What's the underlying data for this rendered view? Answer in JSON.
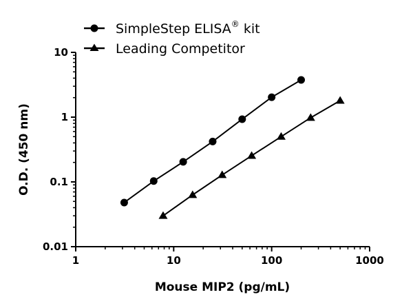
{
  "chart_data": {
    "type": "line",
    "title": "",
    "xlabel": "Mouse MIP2 (pg/mL)",
    "ylabel": "O.D. (450 nm)",
    "xscale": "log",
    "yscale": "log",
    "xlim": [
      1,
      1000
    ],
    "ylim": [
      0.01,
      10
    ],
    "xticks": [
      "1",
      "10",
      "100",
      "1000"
    ],
    "yticks": [
      "0.01",
      "0.1",
      "1",
      "10"
    ],
    "grid": false,
    "legend_placement": "top-left",
    "series": [
      {
        "name": "SimpleStep ELISA® kit",
        "legend_main": "SimpleStep ELISA",
        "legend_sup": "®",
        "legend_suffix": " kit",
        "marker": "circle",
        "color": "#000000",
        "x": [
          3.125,
          6.25,
          12.5,
          25,
          50,
          100,
          200
        ],
        "y": [
          0.048,
          0.103,
          0.204,
          0.42,
          0.93,
          2.03,
          3.75
        ]
      },
      {
        "name": "Leading Competitor",
        "marker": "triangle",
        "color": "#000000",
        "x": [
          7.8,
          15.6,
          31.25,
          62.5,
          125,
          250,
          500
        ],
        "y": [
          0.03,
          0.063,
          0.128,
          0.254,
          0.5,
          0.98,
          1.8
        ]
      }
    ]
  }
}
